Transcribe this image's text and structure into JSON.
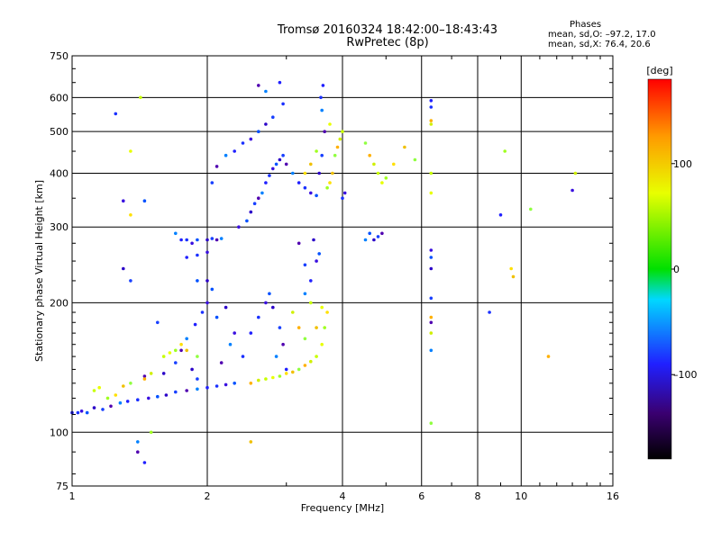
{
  "header": {
    "title_line1": "Tromsø 20160324 18:42:00–18:43:43",
    "title_line2": "RwPretec (8p)"
  },
  "stats": {
    "title": "Phases",
    "o_mode": "mean, sd,O: –97.2, 17.0",
    "x_mode": "mean, sd,X:  76.4, 20.6"
  },
  "colors": {
    "grid": "#000000",
    "frame": "#000000"
  },
  "chart_data": {
    "type": "scatter",
    "title": "",
    "xlabel": "Frequency [MHz]",
    "ylabel": "Stationary phase Virtual Height [km]",
    "x_scale": "log",
    "y_scale": "log",
    "xlim": [
      1,
      16
    ],
    "ylim": [
      75,
      750
    ],
    "x_ticks": [
      1,
      2,
      4,
      6,
      8,
      10,
      16
    ],
    "x_tick_labels": [
      "1",
      "2",
      "4",
      "6",
      "8",
      "10",
      "16"
    ],
    "y_ticks": [
      75,
      100,
      200,
      300,
      400,
      500,
      600,
      750
    ],
    "y_tick_labels": [
      "75",
      "100",
      "200",
      "300",
      "400",
      "500",
      "600",
      "750"
    ],
    "grid": true,
    "colorbar": {
      "label": "deg",
      "range": [
        -180,
        180
      ],
      "ticks": [
        100,
        0,
        -100
      ],
      "tick_labels": [
        "100",
        "0",
        "–100"
      ]
    },
    "series": [
      {
        "name": "O",
        "points": [
          [
            1.0,
            111
          ],
          [
            1.03,
            111
          ],
          [
            1.05,
            112
          ],
          [
            1.08,
            111
          ],
          [
            1.12,
            114
          ],
          [
            1.17,
            113
          ],
          [
            1.22,
            115
          ],
          [
            1.28,
            117
          ],
          [
            1.33,
            118
          ],
          [
            1.4,
            119
          ],
          [
            1.48,
            120
          ],
          [
            1.55,
            121
          ],
          [
            1.62,
            122
          ],
          [
            1.7,
            124
          ],
          [
            1.8,
            125
          ],
          [
            1.9,
            126
          ],
          [
            2.0,
            127
          ],
          [
            2.1,
            128
          ],
          [
            2.2,
            129
          ],
          [
            2.3,
            130
          ],
          [
            1.6,
            137
          ],
          [
            1.7,
            145
          ],
          [
            1.75,
            155
          ],
          [
            1.8,
            165
          ],
          [
            1.88,
            178
          ],
          [
            1.95,
            190
          ],
          [
            2.0,
            200
          ],
          [
            2.05,
            215
          ],
          [
            1.85,
            140
          ],
          [
            1.9,
            133
          ],
          [
            2.15,
            145
          ],
          [
            2.25,
            160
          ],
          [
            2.5,
            170
          ],
          [
            2.6,
            185
          ],
          [
            2.7,
            200
          ],
          [
            2.75,
            210
          ],
          [
            2.8,
            195
          ],
          [
            2.9,
            175
          ],
          [
            2.95,
            160
          ],
          [
            2.85,
            150
          ],
          [
            3.0,
            140
          ],
          [
            2.4,
            150
          ],
          [
            2.3,
            170
          ],
          [
            2.1,
            185
          ],
          [
            2.2,
            195
          ],
          [
            1.55,
            180
          ],
          [
            1.45,
            135
          ],
          [
            1.7,
            290
          ],
          [
            1.75,
            280
          ],
          [
            1.8,
            280
          ],
          [
            1.85,
            275
          ],
          [
            1.9,
            280
          ],
          [
            2.0,
            280
          ],
          [
            2.05,
            282
          ],
          [
            2.1,
            280
          ],
          [
            2.15,
            282
          ],
          [
            1.8,
            255
          ],
          [
            1.9,
            258
          ],
          [
            2.0,
            262
          ],
          [
            1.9,
            225
          ],
          [
            2.0,
            225
          ],
          [
            2.05,
            380
          ],
          [
            2.1,
            415
          ],
          [
            2.2,
            440
          ],
          [
            2.3,
            450
          ],
          [
            2.4,
            470
          ],
          [
            2.5,
            480
          ],
          [
            2.6,
            500
          ],
          [
            2.7,
            520
          ],
          [
            2.8,
            540
          ],
          [
            2.6,
            640
          ],
          [
            2.7,
            620
          ],
          [
            2.9,
            650
          ],
          [
            2.95,
            580
          ],
          [
            2.35,
            300
          ],
          [
            2.45,
            310
          ],
          [
            2.5,
            325
          ],
          [
            2.55,
            340
          ],
          [
            2.6,
            350
          ],
          [
            2.65,
            360
          ],
          [
            2.7,
            380
          ],
          [
            2.75,
            395
          ],
          [
            2.8,
            410
          ],
          [
            2.85,
            420
          ],
          [
            2.9,
            430
          ],
          [
            2.95,
            440
          ],
          [
            3.0,
            420
          ],
          [
            3.1,
            400
          ],
          [
            3.2,
            380
          ],
          [
            3.3,
            370
          ],
          [
            3.4,
            360
          ],
          [
            3.5,
            355
          ],
          [
            3.55,
            400
          ],
          [
            3.6,
            440
          ],
          [
            3.65,
            500
          ],
          [
            3.6,
            560
          ],
          [
            3.62,
            640
          ],
          [
            3.58,
            600
          ],
          [
            3.5,
            250
          ],
          [
            3.55,
            260
          ],
          [
            3.45,
            280
          ],
          [
            3.3,
            245
          ],
          [
            3.2,
            275
          ],
          [
            3.3,
            210
          ],
          [
            3.4,
            225
          ],
          [
            4.0,
            350
          ],
          [
            4.05,
            360
          ],
          [
            4.6,
            290
          ],
          [
            4.7,
            280
          ],
          [
            4.8,
            285
          ],
          [
            4.9,
            290
          ],
          [
            4.5,
            280
          ],
          [
            6.3,
            590
          ],
          [
            6.3,
            570
          ],
          [
            6.3,
            265
          ],
          [
            6.3,
            255
          ],
          [
            6.3,
            240
          ],
          [
            6.3,
            205
          ],
          [
            6.3,
            180
          ],
          [
            6.3,
            155
          ],
          [
            9.0,
            320
          ],
          [
            8.5,
            190
          ],
          [
            13.0,
            365
          ],
          [
            1.45,
            345
          ],
          [
            1.3,
            240
          ],
          [
            1.35,
            225
          ],
          [
            1.4,
            90
          ],
          [
            1.4,
            95
          ],
          [
            1.45,
            85
          ],
          [
            1.25,
            550
          ],
          [
            1.3,
            345
          ]
        ],
        "color_group": "blue-violet (about –100 deg)"
      },
      {
        "name": "X",
        "points": [
          [
            1.12,
            125
          ],
          [
            1.15,
            127
          ],
          [
            1.2,
            120
          ],
          [
            1.25,
            122
          ],
          [
            1.3,
            128
          ],
          [
            1.35,
            130
          ],
          [
            1.45,
            133
          ],
          [
            1.5,
            137
          ],
          [
            1.6,
            150
          ],
          [
            1.65,
            153
          ],
          [
            1.7,
            155
          ],
          [
            1.75,
            160
          ],
          [
            1.8,
            155
          ],
          [
            1.9,
            150
          ],
          [
            2.5,
            130
          ],
          [
            2.6,
            132
          ],
          [
            2.7,
            133
          ],
          [
            2.8,
            134
          ],
          [
            2.9,
            135
          ],
          [
            3.0,
            137
          ],
          [
            3.1,
            138
          ],
          [
            3.2,
            140
          ],
          [
            3.3,
            143
          ],
          [
            3.4,
            146
          ],
          [
            3.5,
            150
          ],
          [
            3.6,
            160
          ],
          [
            3.65,
            175
          ],
          [
            3.7,
            190
          ],
          [
            3.5,
            175
          ],
          [
            3.3,
            165
          ],
          [
            3.2,
            175
          ],
          [
            3.1,
            190
          ],
          [
            3.4,
            200
          ],
          [
            3.6,
            195
          ],
          [
            3.7,
            370
          ],
          [
            3.75,
            380
          ],
          [
            3.8,
            400
          ],
          [
            3.85,
            440
          ],
          [
            3.9,
            460
          ],
          [
            3.95,
            480
          ],
          [
            4.0,
            500
          ],
          [
            3.75,
            520
          ],
          [
            3.5,
            450
          ],
          [
            3.3,
            400
          ],
          [
            3.4,
            420
          ],
          [
            4.5,
            470
          ],
          [
            4.6,
            440
          ],
          [
            4.7,
            420
          ],
          [
            4.8,
            400
          ],
          [
            4.9,
            380
          ],
          [
            5.0,
            390
          ],
          [
            5.2,
            420
          ],
          [
            5.5,
            460
          ],
          [
            5.8,
            430
          ],
          [
            6.3,
            530
          ],
          [
            6.3,
            520
          ],
          [
            6.3,
            400
          ],
          [
            6.3,
            360
          ],
          [
            9.2,
            450
          ],
          [
            9.5,
            240
          ],
          [
            9.6,
            230
          ],
          [
            10.5,
            330
          ],
          [
            11.5,
            150
          ],
          [
            13.2,
            400
          ],
          [
            1.42,
            600
          ],
          [
            1.35,
            450
          ],
          [
            1.5,
            100
          ],
          [
            1.35,
            320
          ],
          [
            2.5,
            95
          ],
          [
            6.3,
            105
          ],
          [
            6.3,
            185
          ],
          [
            6.3,
            170
          ]
        ],
        "color_group": "green-yellow (about +70 to +110 deg)"
      }
    ]
  }
}
